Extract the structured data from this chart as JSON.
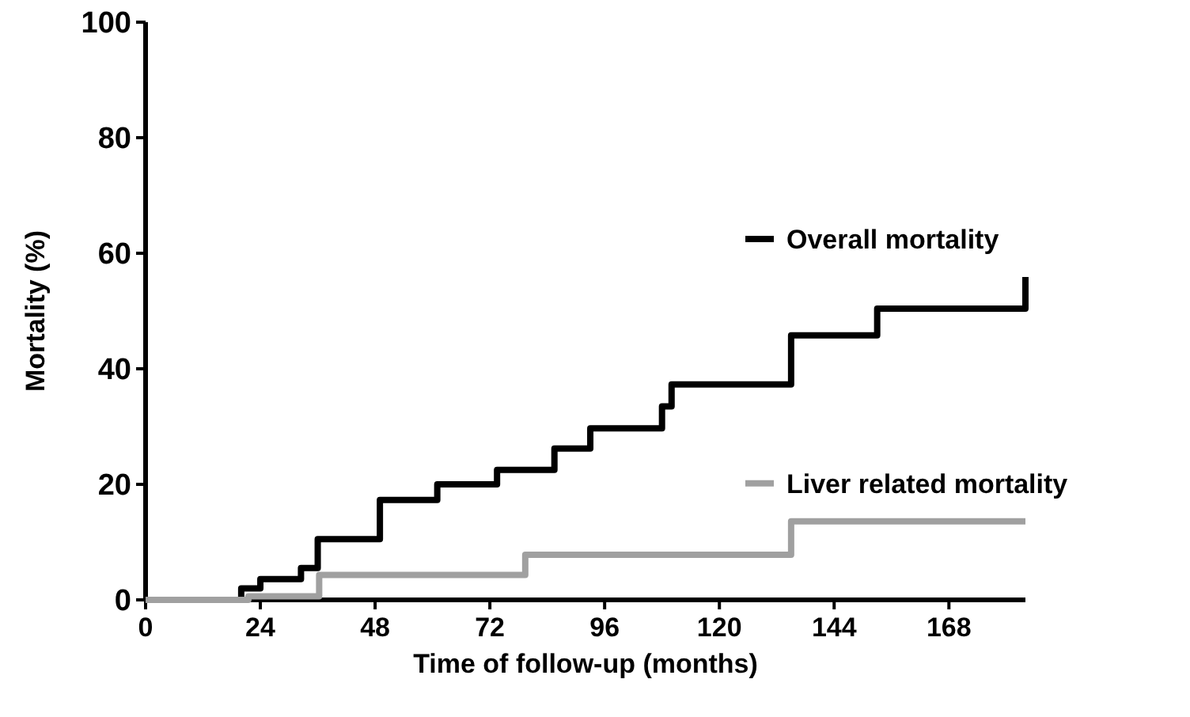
{
  "chart_data": {
    "type": "step",
    "xlabel": "Time of follow-up (months)",
    "ylabel": "Mortality (%)",
    "xlim": [
      0,
      184
    ],
    "ylim": [
      0,
      100
    ],
    "xticks": [
      0,
      24,
      48,
      72,
      96,
      120,
      144,
      168
    ],
    "yticks": [
      0,
      20,
      40,
      60,
      80,
      100
    ],
    "grid": false,
    "legend": "right",
    "series": [
      {
        "name": "Overall mortality",
        "color": "#000000",
        "x": [
          0,
          20,
          24,
          32.5,
          36,
          49,
          61,
          73.5,
          85.5,
          93,
          108,
          110,
          135,
          153,
          184,
          184
        ],
        "values": [
          0,
          2,
          3.6,
          5.5,
          10.5,
          17.3,
          20,
          22.5,
          26.2,
          29.7,
          33.5,
          37.3,
          45.8,
          50.4,
          50.4,
          55.9
        ]
      },
      {
        "name": "Liver related mortality",
        "color": "#a0a0a0",
        "x": [
          0,
          21.5,
          36.3,
          79.4,
          135,
          184
        ],
        "values": [
          0,
          0.6,
          4.3,
          7.8,
          13.6,
          13.6
        ]
      }
    ]
  }
}
